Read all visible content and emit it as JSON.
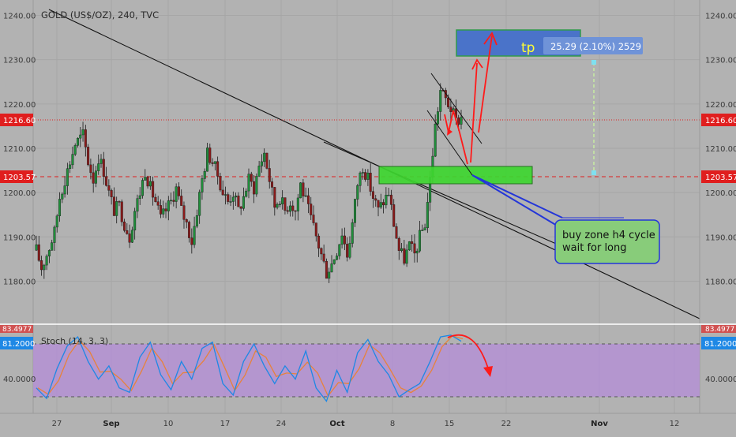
{
  "header": {
    "symbol_line": "GOLD (US$/OZ), 240, TVC"
  },
  "price_axis": {
    "ticks": [
      "1240.00",
      "1230.00",
      "1220.00",
      "1210.00",
      "1200.00",
      "1190.00",
      "1180.00"
    ],
    "tick_values": [
      1240,
      1230,
      1220,
      1210,
      1200,
      1190,
      1180
    ],
    "current_price_label": "1216.60",
    "entry_price_label": "1203.57"
  },
  "time_axis": {
    "labels": [
      "27",
      "Sep",
      "10",
      "17",
      "24",
      "Oct",
      "8",
      "15",
      "22",
      "Nov",
      "12"
    ]
  },
  "annotations": {
    "tp_label": "tp",
    "tp_measure": "25.29 (2.10%) 2529",
    "callout_text_line1": "buy zone h4 cycle",
    "callout_text_line2": "wait for long"
  },
  "stoch_panel": {
    "title": "Stoch (14, 3, 3)",
    "value_label": "81.2000",
    "tick_label": "40.0000",
    "clipped_label": "83.4977"
  },
  "colors": {
    "background": "#b2b2b2",
    "bull_candle": "#1f8f3a",
    "bear_candle": "#8b1b1b",
    "price_label_red": "#e01e1e",
    "stoch_value_blue": "#1e88e5",
    "buy_zone_green": "#3ed630",
    "tp_box_blue": "#4a73c9",
    "tp_text_yellow": "#ffff33",
    "stoch_band_purple": "#b48fd6",
    "callout_fill": "#88cc7a",
    "arrow_red": "#ff1a1a"
  },
  "chart_data": {
    "type": "candlestick",
    "symbol": "GOLD (US$/OZ)",
    "timeframe": "240",
    "ylim": [
      1176,
      1243
    ],
    "current_price": 1216.6,
    "entry_price": 1203.57,
    "buy_zone": [
      1202.5,
      1206.5
    ],
    "take_profit_zone": [
      1230.5,
      1236.5
    ],
    "measure": {
      "points": 25.29,
      "percent": 2.1,
      "ticks": 2529
    },
    "grid": true,
    "close_path": [
      [
        0,
        1187
      ],
      [
        2,
        1183
      ],
      [
        4,
        1186
      ],
      [
        7,
        1191
      ],
      [
        9,
        1199
      ],
      [
        12,
        1205
      ],
      [
        15,
        1211
      ],
      [
        18,
        1213
      ],
      [
        20,
        1207
      ],
      [
        22,
        1203
      ],
      [
        24,
        1208
      ],
      [
        26,
        1205
      ],
      [
        28,
        1200
      ],
      [
        30,
        1196
      ],
      [
        32,
        1197
      ],
      [
        34,
        1193
      ],
      [
        36,
        1190
      ],
      [
        38,
        1196
      ],
      [
        40,
        1200
      ],
      [
        42,
        1205
      ],
      [
        44,
        1201
      ],
      [
        46,
        1198
      ],
      [
        48,
        1194
      ],
      [
        50,
        1196
      ],
      [
        52,
        1198
      ],
      [
        54,
        1201
      ],
      [
        56,
        1196
      ],
      [
        58,
        1193
      ],
      [
        60,
        1189
      ],
      [
        62,
        1196
      ],
      [
        64,
        1203
      ],
      [
        66,
        1209
      ],
      [
        68,
        1207
      ],
      [
        70,
        1204
      ],
      [
        72,
        1200
      ],
      [
        74,
        1198
      ],
      [
        76,
        1200
      ],
      [
        78,
        1196
      ],
      [
        80,
        1199
      ],
      [
        82,
        1203
      ],
      [
        84,
        1201
      ],
      [
        86,
        1206
      ],
      [
        88,
        1209
      ],
      [
        90,
        1203
      ],
      [
        92,
        1197
      ],
      [
        94,
        1199
      ],
      [
        96,
        1196
      ],
      [
        98,
        1198
      ],
      [
        100,
        1196
      ],
      [
        102,
        1202
      ],
      [
        104,
        1198
      ],
      [
        106,
        1194
      ],
      [
        108,
        1190
      ],
      [
        110,
        1186
      ],
      [
        112,
        1182
      ],
      [
        114,
        1184
      ],
      [
        116,
        1187
      ],
      [
        118,
        1191
      ],
      [
        120,
        1186
      ],
      [
        122,
        1193
      ],
      [
        124,
        1202
      ],
      [
        126,
        1206
      ],
      [
        128,
        1203
      ],
      [
        130,
        1199
      ],
      [
        132,
        1196
      ],
      [
        134,
        1198
      ],
      [
        136,
        1200
      ],
      [
        138,
        1193
      ],
      [
        140,
        1187
      ],
      [
        142,
        1185
      ],
      [
        144,
        1188
      ],
      [
        146,
        1186
      ],
      [
        148,
        1190
      ],
      [
        150,
        1193
      ],
      [
        152,
        1203
      ],
      [
        154,
        1215
      ],
      [
        156,
        1223
      ],
      [
        158,
        1221
      ],
      [
        160,
        1219
      ],
      [
        162,
        1216
      ],
      [
        164,
        1217
      ]
    ],
    "stoch": {
      "range": [
        0,
        100
      ],
      "upper_band": 80,
      "lower_band": 20,
      "k": [
        [
          0,
          30
        ],
        [
          4,
          18
        ],
        [
          8,
          52
        ],
        [
          12,
          78
        ],
        [
          16,
          88
        ],
        [
          20,
          60
        ],
        [
          24,
          40
        ],
        [
          28,
          55
        ],
        [
          32,
          30
        ],
        [
          36,
          25
        ],
        [
          40,
          65
        ],
        [
          44,
          82
        ],
        [
          48,
          45
        ],
        [
          52,
          28
        ],
        [
          56,
          60
        ],
        [
          60,
          40
        ],
        [
          64,
          75
        ],
        [
          68,
          82
        ],
        [
          72,
          35
        ],
        [
          76,
          22
        ],
        [
          80,
          60
        ],
        [
          84,
          80
        ],
        [
          88,
          55
        ],
        [
          92,
          35
        ],
        [
          96,
          55
        ],
        [
          100,
          40
        ],
        [
          104,
          72
        ],
        [
          108,
          30
        ],
        [
          112,
          15
        ],
        [
          116,
          50
        ],
        [
          120,
          25
        ],
        [
          124,
          70
        ],
        [
          128,
          85
        ],
        [
          132,
          60
        ],
        [
          136,
          45
        ],
        [
          140,
          20
        ],
        [
          144,
          28
        ],
        [
          148,
          35
        ],
        [
          152,
          60
        ],
        [
          156,
          88
        ],
        [
          160,
          90
        ],
        [
          164,
          83
        ]
      ]
    }
  }
}
